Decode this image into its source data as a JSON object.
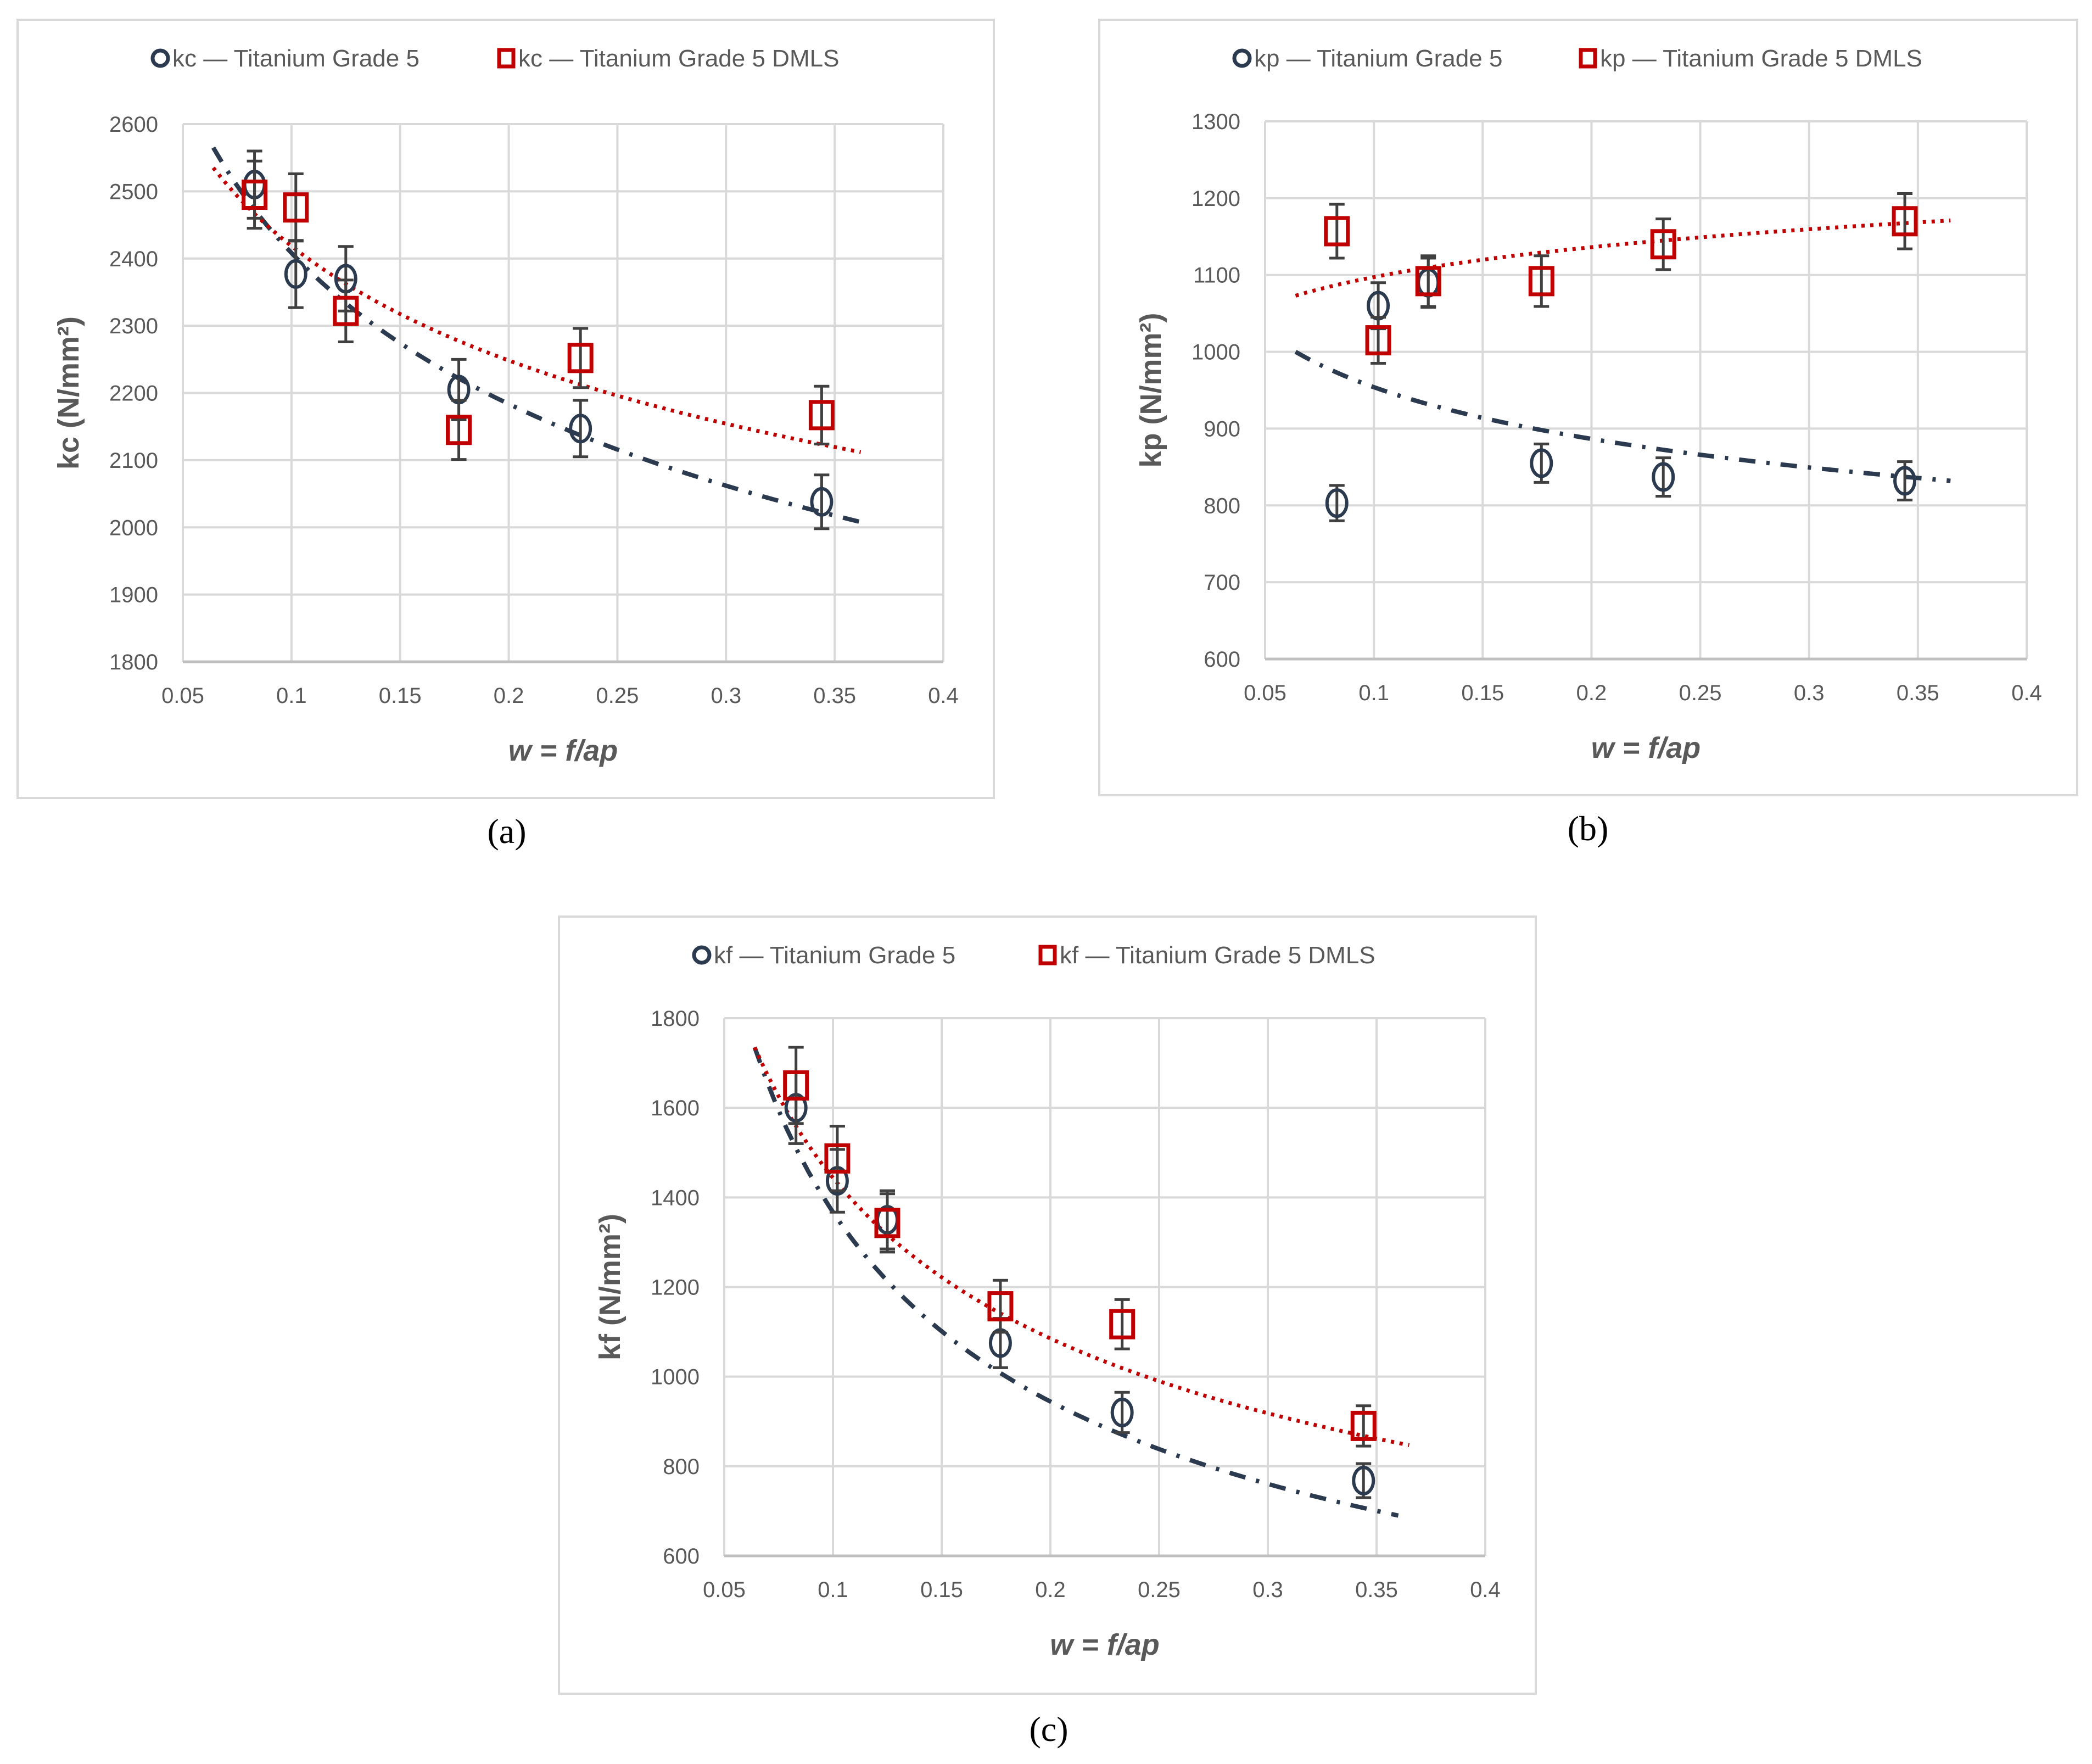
{
  "colors": {
    "series1": "#2b3a4e",
    "series2": "#c00000",
    "grid": "#d9d9d9",
    "errorbar": "#404040",
    "text": "#595959"
  },
  "chart_data": [
    {
      "type": "scatter",
      "panel_label": "(a)",
      "xlabel": "w = f/ap",
      "ylabel": "kc (N/mm²)",
      "xlim": [
        0.05,
        0.4
      ],
      "ylim": [
        1800,
        2600
      ],
      "xticks": [
        "0.05",
        "0.1",
        "0.15",
        "0.2",
        "0.25",
        "0.3",
        "0.35",
        "0.4"
      ],
      "yticks": [
        "1800",
        "1900",
        "2000",
        "2100",
        "2200",
        "2300",
        "2400",
        "2500",
        "2600"
      ],
      "grid": true,
      "legend_position": "top",
      "series": [
        {
          "name": "kc — Titanium Grade 5",
          "marker": "circle",
          "x": [
            0.083,
            0.102,
            0.125,
            0.177,
            0.233,
            0.344
          ],
          "y": [
            2510,
            2377,
            2370,
            2205,
            2147,
            2038
          ],
          "error": [
            50,
            50,
            48,
            45,
            42,
            40
          ],
          "trend": {
            "type": "power",
            "line": "dash-dot",
            "x": [
              0.064,
              0.362
            ],
            "y": [
              2565,
              2008
            ]
          }
        },
        {
          "name": "kc — Titanium Grade 5 DMLS",
          "marker": "square",
          "x": [
            0.083,
            0.102,
            0.125,
            0.177,
            0.233,
            0.344
          ],
          "y": [
            2495,
            2476,
            2322,
            2145,
            2252,
            2167
          ],
          "error": [
            50,
            50,
            46,
            44,
            44,
            43
          ],
          "trend": {
            "type": "power",
            "line": "dotted",
            "x": [
              0.064,
              0.362
            ],
            "y": [
              2535,
              2112
            ]
          }
        }
      ]
    },
    {
      "type": "scatter",
      "panel_label": "(b)",
      "xlabel": "w = f/ap",
      "ylabel": "kp (N/mm²)",
      "xlim": [
        0.05,
        0.4
      ],
      "ylim": [
        600,
        1300
      ],
      "xticks": [
        "0.05",
        "0.1",
        "0.15",
        "0.2",
        "0.25",
        "0.3",
        "0.35",
        "0.4"
      ],
      "yticks": [
        "600",
        "700",
        "800",
        "900",
        "1000",
        "1100",
        "1200",
        "1300"
      ],
      "grid": true,
      "legend_position": "top",
      "series": [
        {
          "name": "kp — Titanium Grade 5",
          "marker": "circle",
          "x": [
            0.083,
            0.102,
            0.125,
            0.177,
            0.233,
            0.344
          ],
          "y": [
            803,
            1060,
            1090,
            855,
            837,
            832
          ],
          "error": [
            23,
            30,
            32,
            25,
            25,
            25
          ],
          "trend": {
            "type": "power",
            "line": "dash-dot",
            "x": [
              0.064,
              0.365
            ],
            "y": [
              1000,
              832
            ]
          }
        },
        {
          "name": "kp — Titanium Grade 5 DMLS",
          "marker": "square",
          "x": [
            0.083,
            0.102,
            0.125,
            0.177,
            0.233,
            0.344
          ],
          "y": [
            1157,
            1015,
            1092,
            1092,
            1140,
            1170
          ],
          "error": [
            35,
            30,
            33,
            33,
            33,
            36
          ],
          "trend": {
            "type": "power",
            "line": "dotted",
            "x": [
              0.064,
              0.365
            ],
            "y": [
              1073,
              1171
            ]
          }
        }
      ]
    },
    {
      "type": "scatter",
      "panel_label": "(c)",
      "xlabel": "w = f/ap",
      "ylabel": "kf (N/mm²)",
      "xlim": [
        0.05,
        0.4
      ],
      "ylim": [
        600,
        1800
      ],
      "xticks": [
        "0.05",
        "0.1",
        "0.15",
        "0.2",
        "0.25",
        "0.3",
        "0.35",
        "0.4"
      ],
      "yticks": [
        "600",
        "800",
        "1000",
        "1200",
        "1400",
        "1600",
        "1800"
      ],
      "grid": true,
      "legend_position": "top",
      "series": [
        {
          "name": "kf — Titanium Grade 5",
          "marker": "circle",
          "x": [
            0.083,
            0.102,
            0.125,
            0.177,
            0.233,
            0.344
          ],
          "y": [
            1600,
            1437,
            1350,
            1075,
            920,
            768
          ],
          "error": [
            80,
            70,
            65,
            55,
            45,
            38
          ],
          "trend": {
            "type": "power",
            "line": "dash-dot",
            "x": [
              0.064,
              0.36
            ],
            "y": [
              1735,
              690
            ]
          }
        },
        {
          "name": "kf — Titanium Grade 5 DMLS",
          "marker": "square",
          "x": [
            0.083,
            0.102,
            0.125,
            0.177,
            0.233,
            0.344
          ],
          "y": [
            1650,
            1487,
            1343,
            1157,
            1117,
            890
          ],
          "error": [
            85,
            72,
            65,
            58,
            55,
            45
          ],
          "trend": {
            "type": "power",
            "line": "dotted",
            "x": [
              0.064,
              0.365
            ],
            "y": [
              1735,
              847
            ]
          }
        }
      ]
    }
  ]
}
